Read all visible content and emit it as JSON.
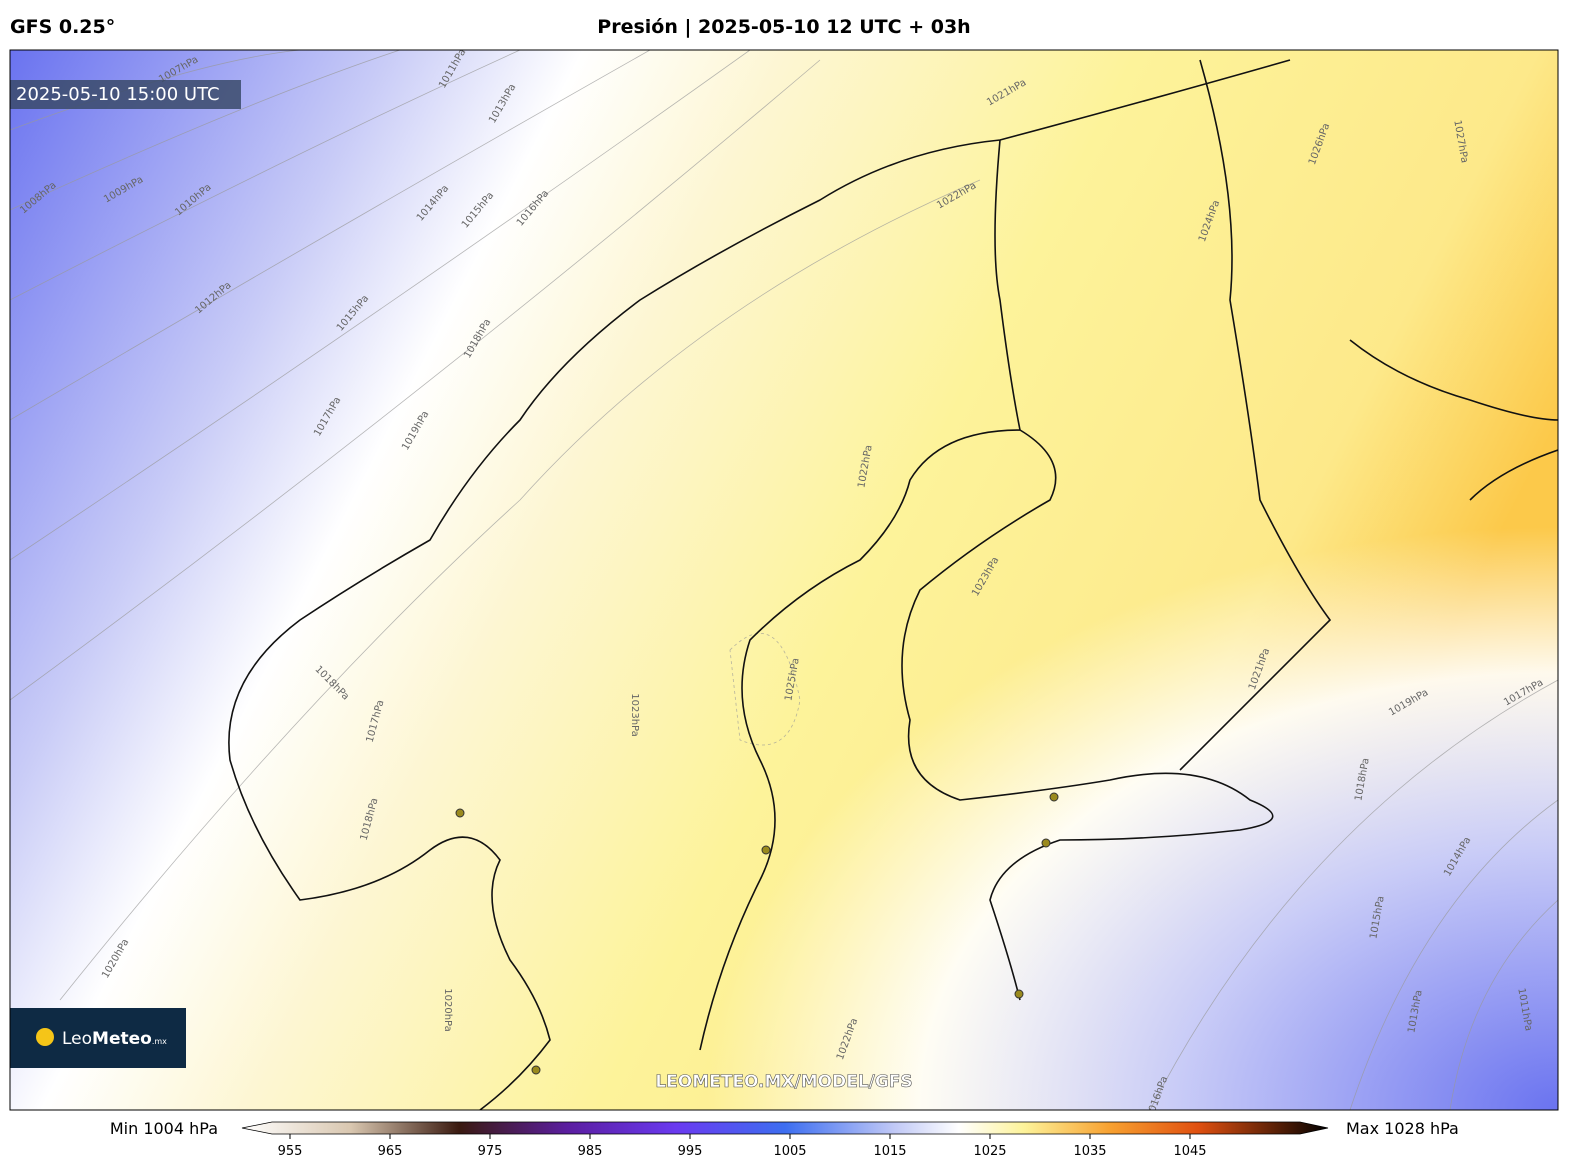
{
  "header": {
    "model": "GFS 0.25°",
    "title": "Presión | 2025-05-10 12 UTC + 03h"
  },
  "map": {
    "valid_time": "2025-05-10 15:00 UTC",
    "watermark": "LEOMETEO.MX/MODEL/GFS",
    "logo": {
      "name_light": "Leo",
      "name_bold": "Meteo",
      "suffix": ".mx"
    },
    "isobar_labels": [
      "1007hPa",
      "1008hPa",
      "1009hPa",
      "1010hPa",
      "1011hPa",
      "1012hPa",
      "1013hPa",
      "1014hPa",
      "1015hPa",
      "1016hPa",
      "1015hPa",
      "1017hPa",
      "1018hPa",
      "1019hPa",
      "1020hPa",
      "1021hPa",
      "1022hPa",
      "1022hPa",
      "1023hPa",
      "1023hPa",
      "1024hPa",
      "1025hPa",
      "1026hPa",
      "1027hPa",
      "1018hPa",
      "1017hPa",
      "1018hPa",
      "1021hPa",
      "1019hPa",
      "1017hPa",
      "1018hPa",
      "1014hPa",
      "1015hPa",
      "1013hPa",
      "1011hPa",
      "1022hPa",
      "1016hPa",
      "1020hPa"
    ]
  },
  "colorbar": {
    "min_label": "Min 1004 hPa",
    "max_label": "Max 1028 hPa",
    "ticks": [
      955,
      965,
      975,
      985,
      995,
      1005,
      1015,
      1025,
      1035,
      1045
    ]
  }
}
